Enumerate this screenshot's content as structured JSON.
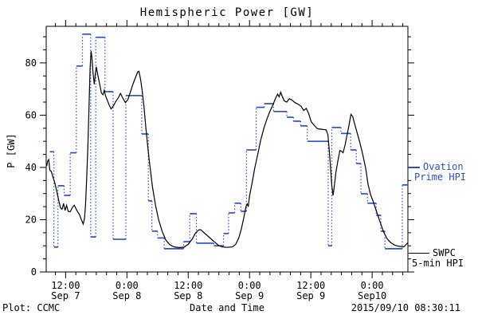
{
  "title": "Hemispheric Power [GW]",
  "colors": {
    "ovation": "#2c50cc",
    "swpc": "#000000",
    "frame": "#000000",
    "background": "#ffffff"
  },
  "legend": {
    "ovation": {
      "line1": "Ovation",
      "line2": "Prime HPI"
    },
    "swpc": {
      "line1": "SWPC",
      "line2": "5-min HPI"
    }
  },
  "footer": {
    "left": "Plot: CCMC",
    "center": "Date and Time",
    "right": "2015/09/10 08:30:11"
  },
  "chart_data": {
    "type": "line",
    "title": "Hemispheric Power [GW]",
    "xlabel": "Date and Time",
    "ylabel": "P [GW]",
    "x_unit": "hours since 2015-09-07 00:00 UT",
    "xlim": [
      8.2,
      79.0
    ],
    "ylim": [
      0,
      94
    ],
    "grid": false,
    "legend_position": "right-outside",
    "x_major_ticks": [
      {
        "t": 12,
        "time": "12:00",
        "date": "Sep 7"
      },
      {
        "t": 24,
        "time": "0:00",
        "date": "Sep 8"
      },
      {
        "t": 36,
        "time": "12:00",
        "date": "Sep 8"
      },
      {
        "t": 48,
        "time": "0:00",
        "date": "Sep 9"
      },
      {
        "t": 60,
        "time": "12:00",
        "date": "Sep 9"
      },
      {
        "t": 72,
        "time": "0:00",
        "date": "Sep10"
      }
    ],
    "x_minor_step": 2,
    "y_major_ticks": [
      0,
      20,
      40,
      60,
      80
    ],
    "y_minor_step": 5,
    "series": [
      {
        "name": "Ovation Prime HPI",
        "style": "steps-with-dotted-connectors",
        "color_key": "ovation",
        "steps": [
          [
            8.9,
            9.7,
            46
          ],
          [
            9.7,
            10.5,
            9.5
          ],
          [
            10.5,
            11.7,
            33
          ],
          [
            11.7,
            12.9,
            29.3
          ],
          [
            12.9,
            14.1,
            45.6
          ],
          [
            14.1,
            15.3,
            78.8
          ],
          [
            15.3,
            16.9,
            91
          ],
          [
            16.9,
            17.9,
            13.4
          ],
          [
            17.9,
            19.7,
            89.8
          ],
          [
            19.7,
            21.3,
            69
          ],
          [
            21.3,
            23.8,
            12.5
          ],
          [
            23.8,
            26.9,
            67.5
          ],
          [
            26.9,
            28.2,
            52.8
          ],
          [
            28.2,
            28.9,
            27.2
          ],
          [
            28.9,
            30.0,
            15.6
          ],
          [
            30.0,
            31.3,
            13
          ],
          [
            31.3,
            35.1,
            8.9
          ],
          [
            35.1,
            36.3,
            11.6
          ],
          [
            36.3,
            37.6,
            22.3
          ],
          [
            37.6,
            41.0,
            11
          ],
          [
            41.0,
            42.9,
            10
          ],
          [
            42.9,
            43.9,
            14.7
          ],
          [
            43.9,
            45.1,
            22.6
          ],
          [
            45.1,
            46.3,
            26.3
          ],
          [
            46.3,
            47.4,
            23.2
          ],
          [
            47.4,
            49.3,
            46.7
          ],
          [
            49.3,
            50.9,
            63
          ],
          [
            50.9,
            52.7,
            64.4
          ],
          [
            52.7,
            55.3,
            61.4
          ],
          [
            55.3,
            56.6,
            59.2
          ],
          [
            56.6,
            58.0,
            57.7
          ],
          [
            58.0,
            59.3,
            55.9
          ],
          [
            59.3,
            63.4,
            50
          ],
          [
            63.4,
            64.1,
            10
          ],
          [
            64.1,
            65.9,
            55.3
          ],
          [
            65.9,
            67.8,
            53
          ],
          [
            67.8,
            68.9,
            46.7
          ],
          [
            68.9,
            69.8,
            41.5
          ],
          [
            69.8,
            71.1,
            29.9
          ],
          [
            71.1,
            72.8,
            26.3
          ],
          [
            72.8,
            73.7,
            21.7
          ],
          [
            73.7,
            74.5,
            15.6
          ],
          [
            74.5,
            77.9,
            8.9
          ],
          [
            77.9,
            79.0,
            33.3
          ]
        ]
      },
      {
        "name": "SWPC 5-min HPI",
        "style": "solid",
        "color_key": "swpc",
        "points": [
          [
            8.3,
            40.5
          ],
          [
            8.5,
            42.5
          ],
          [
            8.7,
            43
          ],
          [
            8.9,
            39
          ],
          [
            9.2,
            38.5
          ],
          [
            9.5,
            36.5
          ],
          [
            9.9,
            34
          ],
          [
            10.3,
            30.5
          ],
          [
            10.7,
            27
          ],
          [
            11.0,
            24.5
          ],
          [
            11.3,
            24
          ],
          [
            11.6,
            26.2
          ],
          [
            11.9,
            23.5
          ],
          [
            12.2,
            25.5
          ],
          [
            12.5,
            23.2
          ],
          [
            12.9,
            23
          ],
          [
            13.3,
            24.6
          ],
          [
            13.7,
            25.5
          ],
          [
            14.2,
            23.5
          ],
          [
            14.7,
            22
          ],
          [
            15.1,
            20
          ],
          [
            15.45,
            18.3
          ],
          [
            15.7,
            20.5
          ],
          [
            15.9,
            26
          ],
          [
            16.1,
            35
          ],
          [
            16.35,
            48
          ],
          [
            16.6,
            65
          ],
          [
            16.8,
            78
          ],
          [
            17.0,
            84.5
          ],
          [
            17.15,
            82
          ],
          [
            17.35,
            76.5
          ],
          [
            17.6,
            71.8
          ],
          [
            17.8,
            75.5
          ],
          [
            18.0,
            78.5
          ],
          [
            18.25,
            76
          ],
          [
            18.5,
            73.5
          ],
          [
            18.75,
            71
          ],
          [
            19.0,
            68.5
          ],
          [
            19.3,
            67.8
          ],
          [
            19.55,
            69.5
          ],
          [
            19.8,
            67.5
          ],
          [
            20.1,
            66
          ],
          [
            20.5,
            64
          ],
          [
            20.9,
            62.4
          ],
          [
            21.35,
            63.5
          ],
          [
            21.8,
            65.2
          ],
          [
            22.3,
            66.6
          ],
          [
            22.75,
            68.3
          ],
          [
            23.2,
            66.5
          ],
          [
            23.7,
            64.8
          ],
          [
            24.2,
            66
          ],
          [
            24.7,
            69
          ],
          [
            25.2,
            72
          ],
          [
            25.7,
            74.5
          ],
          [
            26.1,
            76.5
          ],
          [
            26.35,
            76.8
          ],
          [
            26.7,
            73.5
          ],
          [
            27.0,
            69
          ],
          [
            27.35,
            63
          ],
          [
            27.7,
            55.5
          ],
          [
            28.1,
            47.5
          ],
          [
            28.5,
            40.5
          ],
          [
            29.0,
            32.5
          ],
          [
            29.6,
            25.5
          ],
          [
            30.2,
            20
          ],
          [
            30.9,
            15.5
          ],
          [
            31.6,
            12.2
          ],
          [
            32.4,
            10.4
          ],
          [
            33.2,
            9.6
          ],
          [
            34.2,
            9.3
          ],
          [
            35.2,
            9.5
          ],
          [
            36.0,
            10.6
          ],
          [
            36.8,
            12.6
          ],
          [
            37.4,
            14.8
          ],
          [
            38.0,
            16.0
          ],
          [
            38.4,
            16.2
          ],
          [
            41.9,
            10.2
          ],
          [
            42.6,
            9.6
          ],
          [
            43.6,
            9.4
          ],
          [
            44.7,
            9.6
          ],
          [
            45.3,
            10.6
          ],
          [
            45.9,
            13
          ],
          [
            46.4,
            16.5
          ],
          [
            46.9,
            21
          ],
          [
            47.3,
            25
          ],
          [
            47.55,
            26
          ],
          [
            47.75,
            25
          ],
          [
            48.0,
            29
          ],
          [
            48.5,
            34
          ],
          [
            49.0,
            39.5
          ],
          [
            49.6,
            45
          ],
          [
            50.2,
            50.5
          ],
          [
            50.8,
            55
          ],
          [
            51.4,
            58.5
          ],
          [
            52.0,
            61.5
          ],
          [
            52.6,
            64
          ],
          [
            53.1,
            66.5
          ],
          [
            53.5,
            68.1
          ],
          [
            53.8,
            67
          ],
          [
            54.1,
            68.8
          ],
          [
            54.45,
            67
          ],
          [
            54.8,
            65.5
          ],
          [
            55.3,
            65
          ],
          [
            55.8,
            66.3
          ],
          [
            56.3,
            65.8
          ],
          [
            56.9,
            64.8
          ],
          [
            57.5,
            64.2
          ],
          [
            58.1,
            63.4
          ],
          [
            58.6,
            61.8
          ],
          [
            59.1,
            62.6
          ],
          [
            59.6,
            60.5
          ],
          [
            60.1,
            57.4
          ],
          [
            60.7,
            56
          ],
          [
            61.3,
            54.8
          ],
          [
            62.1,
            54.6
          ],
          [
            63.0,
            54.4
          ],
          [
            63.35,
            52.5
          ],
          [
            63.6,
            47
          ],
          [
            63.85,
            40
          ],
          [
            64.1,
            33
          ],
          [
            64.35,
            29.3
          ],
          [
            64.6,
            33
          ],
          [
            64.9,
            38
          ],
          [
            65.3,
            42.5
          ],
          [
            65.7,
            46.5
          ],
          [
            66.0,
            46.2
          ],
          [
            66.3,
            45.6
          ],
          [
            66.7,
            48.5
          ],
          [
            67.1,
            52.5
          ],
          [
            67.5,
            56.5
          ],
          [
            67.85,
            60.3
          ],
          [
            68.2,
            59.5
          ],
          [
            68.6,
            56.5
          ],
          [
            69.1,
            53
          ],
          [
            69.6,
            49.5
          ],
          [
            70.1,
            45.5
          ],
          [
            70.7,
            40
          ],
          [
            71.2,
            33.5
          ],
          [
            71.7,
            29.5
          ],
          [
            72.2,
            27
          ],
          [
            72.8,
            23.5
          ],
          [
            73.5,
            19.5
          ],
          [
            74.2,
            15.5
          ],
          [
            74.9,
            12.8
          ],
          [
            75.6,
            11.3
          ],
          [
            76.4,
            10.3
          ],
          [
            77.3,
            9.8
          ],
          [
            78.2,
            9.6
          ],
          [
            79.0,
            11.2
          ]
        ]
      }
    ]
  }
}
